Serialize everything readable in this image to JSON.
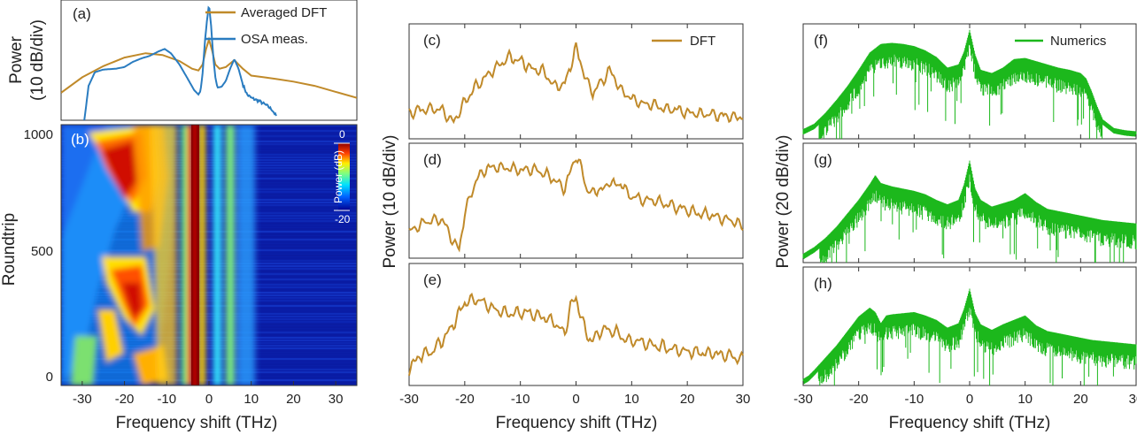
{
  "chart_data": [
    {
      "type": "line",
      "panel": "(a)",
      "ylabel": "Power",
      "ylabel_units": "(10 dB/div)",
      "xlim": [
        -35,
        35
      ],
      "series": [
        {
          "name": "Averaged DFT",
          "color": "#c08a2a",
          "x": [
            -35,
            -30,
            -25,
            -20,
            -15,
            -11,
            -7,
            -4,
            -2.5,
            -1.5,
            -0.7,
            0,
            0.7,
            1.5,
            2.5,
            4,
            6,
            8,
            10,
            13,
            16,
            20,
            25,
            30,
            35
          ],
          "y": [
            3.2,
            5.0,
            6.3,
            7.3,
            7.8,
            7.6,
            6.9,
            6.0,
            5.8,
            6.5,
            8.3,
            9.4,
            8.2,
            6.5,
            6.0,
            6.2,
            7.0,
            6.0,
            5.2,
            5.0,
            4.8,
            4.5,
            4.0,
            3.3,
            2.6
          ]
        },
        {
          "name": "OSA meas.",
          "color": "#2a7cc0",
          "x": [
            -29.5,
            -28.5,
            -27,
            -25,
            -22,
            -20,
            -18,
            -16,
            -14,
            -12,
            -10.5,
            -9,
            -7,
            -5,
            -3.5,
            -2.5,
            -2,
            -1.5,
            -1,
            -0.5,
            0,
            0.5,
            1,
            1.5,
            2,
            3,
            4,
            5,
            6,
            7,
            8,
            9,
            10,
            11,
            12,
            13,
            14,
            15,
            16
          ],
          "y": [
            0,
            4.0,
            5.6,
            5.9,
            6.0,
            6.2,
            6.8,
            7.2,
            7.5,
            8.0,
            8.3,
            7.8,
            6.5,
            4.8,
            3.5,
            3.0,
            3.4,
            5.5,
            9.0,
            11.5,
            13.5,
            11.0,
            7.5,
            5.0,
            3.8,
            3.9,
            4.6,
            6.0,
            7.1,
            6.0,
            4.2,
            3.0,
            2.6,
            2.4,
            2.2,
            1.9,
            1.6,
            1.2,
            0.4
          ]
        }
      ]
    },
    {
      "type": "heatmap",
      "panel": "(b)",
      "xlabel": "Frequency shift (THz)",
      "ylabel": "Roundtrip",
      "xlim": [
        -35,
        35
      ],
      "ylim": [
        0,
        1000
      ],
      "x_ticks": [
        -30,
        -20,
        -10,
        0,
        10,
        20,
        30
      ],
      "y_ticks": [
        0,
        500,
        1000
      ],
      "colorbar": {
        "label": "Power (dB)",
        "max": "0",
        "min": "-20"
      }
    },
    {
      "type": "line",
      "panels": [
        "(c)",
        "(d)",
        "(e)"
      ],
      "xlabel": "Frequency shift (THz)",
      "ylabel": "Power (10 dB/div)",
      "xlim": [
        -30,
        30
      ],
      "x_ticks": [
        -30,
        -20,
        -10,
        0,
        10,
        20,
        30
      ],
      "legend": {
        "label": "DFT",
        "color": "#c08a2a",
        "position": "top-right"
      },
      "series": [
        {
          "x": [
            -30,
            -27,
            -24,
            -22,
            -20,
            -18,
            -16,
            -14,
            -12,
            -10,
            -8,
            -6,
            -4,
            -2,
            -1,
            0,
            1,
            2,
            3,
            4,
            5,
            6,
            7,
            8,
            9,
            10,
            12,
            14,
            16,
            18,
            20,
            22,
            24,
            26,
            28,
            30
          ],
          "y": [
            2.0,
            2.4,
            2.2,
            1.0,
            3.0,
            4.5,
            5.5,
            6.5,
            7.3,
            7.0,
            6.2,
            6.0,
            4.6,
            4.7,
            6.5,
            8.2,
            6.5,
            4.8,
            3.9,
            4.6,
            5.2,
            6.1,
            5.3,
            4.2,
            3.8,
            3.3,
            2.8,
            2.8,
            2.4,
            2.3,
            2.0,
            1.9,
            1.8,
            1.7,
            1.6,
            1.6
          ]
        },
        {
          "x": [
            -30,
            -27,
            -24,
            -22,
            -21,
            -20,
            -18,
            -16,
            -14,
            -12,
            -10,
            -8,
            -6,
            -4,
            -2,
            -1,
            0,
            1,
            2,
            3,
            4,
            5,
            6,
            7,
            8,
            9,
            10,
            12,
            14,
            16,
            18,
            20,
            22,
            24,
            26,
            28,
            30
          ],
          "y": [
            2.0,
            3.0,
            3.2,
            1.0,
            0.4,
            3.8,
            7.0,
            8.1,
            8.2,
            8.1,
            7.9,
            8.0,
            7.7,
            7.0,
            6.2,
            7.8,
            9.4,
            8.0,
            6.0,
            5.6,
            6.2,
            6.0,
            7.0,
            6.4,
            6.7,
            5.9,
            5.4,
            5.1,
            5.0,
            4.7,
            4.4,
            4.1,
            3.8,
            3.6,
            3.4,
            3.1,
            2.5
          ]
        },
        {
          "x": [
            -30,
            -28,
            -26,
            -24,
            -22,
            -20,
            -18,
            -16,
            -14,
            -12,
            -10,
            -8,
            -6,
            -4,
            -2,
            -1,
            0,
            1,
            2,
            3,
            4,
            5,
            6,
            7,
            8,
            9,
            10,
            12,
            14,
            16,
            18,
            20,
            22,
            24,
            26,
            28,
            30
          ],
          "y": [
            1.0,
            2.2,
            2.5,
            3.6,
            5.0,
            7.0,
            7.3,
            6.8,
            6.2,
            6.0,
            6.1,
            6.0,
            5.7,
            5.2,
            4.2,
            6.6,
            7.4,
            5.5,
            4.0,
            3.6,
            4.2,
            4.7,
            4.3,
            4.4,
            4.0,
            3.7,
            3.5,
            3.4,
            3.1,
            3.0,
            2.7,
            2.6,
            2.5,
            2.4,
            2.3,
            2.2,
            1.8
          ]
        }
      ]
    },
    {
      "type": "line",
      "panels": [
        "(f)",
        "(g)",
        "(h)"
      ],
      "xlabel": "Frequency shift (THz)",
      "ylabel": "Power (20 dB/div)",
      "xlim": [
        -30,
        30
      ],
      "x_ticks": [
        -30,
        -20,
        -10,
        0,
        10,
        20,
        30
      ],
      "legend": {
        "label": "Numerics",
        "color": "#1cb81c",
        "position": "top-right"
      },
      "series": [
        {
          "x": [
            -30,
            -28,
            -26,
            -24,
            -22,
            -20,
            -18,
            -16,
            -14,
            -12,
            -10,
            -8,
            -6,
            -4,
            -2,
            -1,
            0,
            1,
            2,
            4,
            6,
            8,
            10,
            12,
            14,
            16,
            18,
            20,
            21,
            22,
            23,
            24,
            26,
            28,
            30
          ],
          "y": [
            0.3,
            0.8,
            1.8,
            3.0,
            4.3,
            5.8,
            7.4,
            8.2,
            8.3,
            8.2,
            8.0,
            7.6,
            7.0,
            6.0,
            6.3,
            7.5,
            9.5,
            7.2,
            5.8,
            5.5,
            6.0,
            6.8,
            6.9,
            6.6,
            6.3,
            6.0,
            5.8,
            5.5,
            5.0,
            3.8,
            2.4,
            1.2,
            0.4,
            0.2,
            0.1
          ]
        },
        {
          "x": [
            -30,
            -28,
            -26,
            -24,
            -22,
            -20,
            -18,
            -17,
            -16,
            -14,
            -12,
            -10,
            -8,
            -6,
            -4,
            -2,
            -1,
            0,
            1,
            2,
            4,
            6,
            8,
            10,
            12,
            14,
            16,
            18,
            20,
            22,
            24,
            26,
            28,
            30
          ],
          "y": [
            0.2,
            0.8,
            1.6,
            2.6,
            3.8,
            5.0,
            6.4,
            7.2,
            6.5,
            6.2,
            6.0,
            5.8,
            5.5,
            5.0,
            4.6,
            5.0,
            6.4,
            8.5,
            6.0,
            5.0,
            4.4,
            4.7,
            5.0,
            5.6,
            4.8,
            4.2,
            4.0,
            3.8,
            3.6,
            3.4,
            3.2,
            3.1,
            3.0,
            2.9
          ]
        },
        {
          "x": [
            -30,
            -29,
            -28,
            -26,
            -24,
            -22,
            -20,
            -18,
            -17,
            -16,
            -15,
            -14,
            -12,
            -10,
            -8,
            -6,
            -4,
            -2,
            -1,
            0,
            1,
            2,
            4,
            6,
            8,
            10,
            12,
            14,
            16,
            18,
            20,
            22,
            24,
            26,
            28,
            30
          ],
          "y": [
            0.0,
            0.3,
            0.8,
            1.9,
            3.0,
            4.3,
            5.6,
            6.4,
            6.0,
            5.0,
            5.7,
            5.8,
            5.9,
            6.0,
            5.7,
            5.3,
            4.6,
            5.0,
            6.3,
            8.1,
            5.9,
            4.9,
            4.4,
            4.9,
            5.3,
            5.7,
            4.8,
            4.3,
            4.1,
            3.9,
            3.7,
            3.5,
            3.4,
            3.3,
            3.2,
            3.1
          ]
        }
      ]
    }
  ],
  "labels": {
    "a": "(a)",
    "b": "(b)",
    "c": "(c)",
    "d": "(d)",
    "e": "(e)",
    "f": "(f)",
    "g": "(g)",
    "h": "(h)",
    "leg_avg": "Averaged DFT",
    "leg_osa": "OSA meas.",
    "leg_dft": "DFT",
    "leg_num": "Numerics",
    "ylab_a1": "Power",
    "ylab_a2": "(10 dB/div)",
    "ylab_b": "Roundtrip",
    "ylab_mid": "Power (10 dB/div)",
    "ylab_right": "Power (20 dB/div)",
    "xlab": "Frequency shift (THz)",
    "cb_label": "Power (dB)",
    "cb_max": "0",
    "cb_min": "-20",
    "yt_0": "0",
    "yt_500": "500",
    "yt_1000": "1000",
    "xt": [
      "-30",
      "-20",
      "-10",
      "0",
      "10",
      "20",
      "30"
    ]
  }
}
